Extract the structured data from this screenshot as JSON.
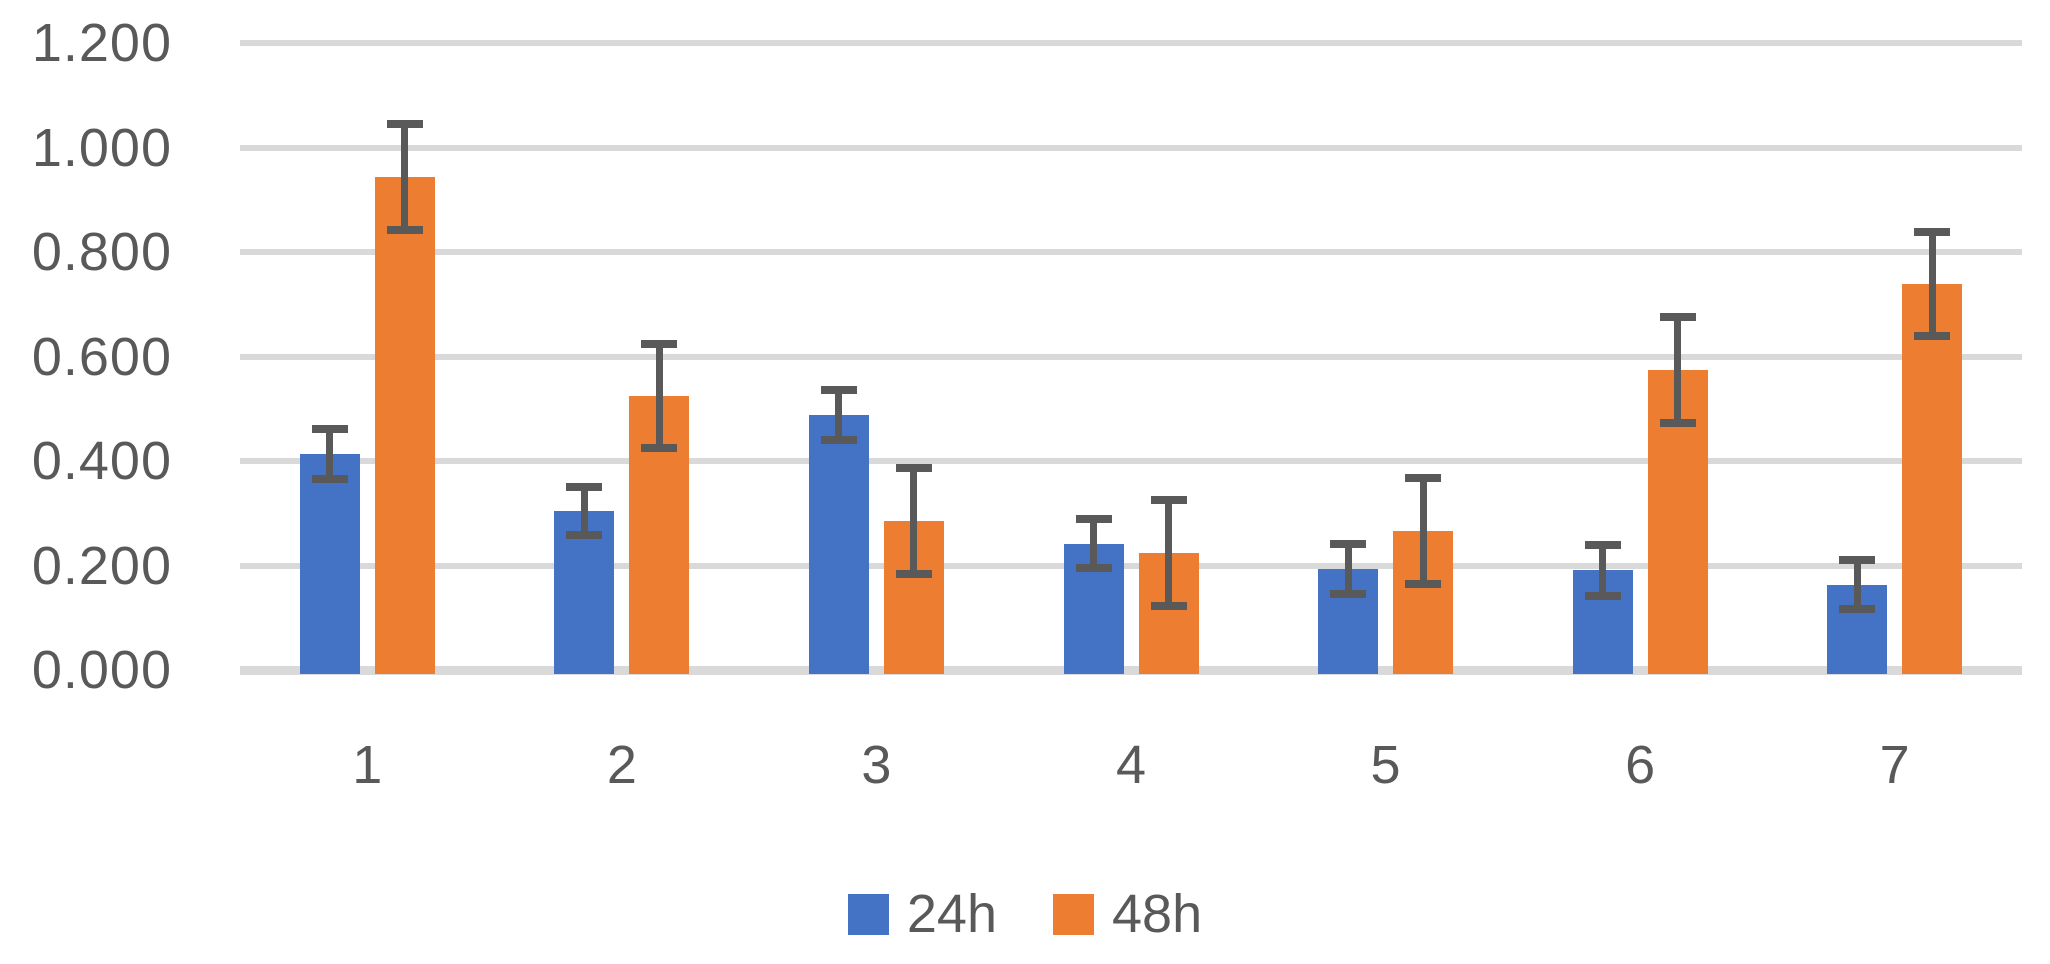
{
  "chart_data": {
    "type": "bar",
    "title": "",
    "xlabel": "",
    "ylabel": "",
    "categories": [
      "1",
      "2",
      "3",
      "4",
      "5",
      "6",
      "7"
    ],
    "series": [
      {
        "name": "24h",
        "color": "#4472C4",
        "values": [
          0.413,
          0.305,
          0.488,
          0.242,
          0.193,
          0.191,
          0.163
        ],
        "errors": [
          0.048,
          0.046,
          0.047,
          0.047,
          0.048,
          0.049,
          0.047
        ]
      },
      {
        "name": "48h",
        "color": "#ED7D31",
        "values": [
          0.944,
          0.524,
          0.285,
          0.224,
          0.266,
          0.574,
          0.739
        ],
        "errors": [
          0.101,
          0.1,
          0.102,
          0.102,
          0.101,
          0.102,
          0.099
        ]
      }
    ],
    "ylim": [
      0.0,
      1.2
    ],
    "y_tick_step": 0.2,
    "y_tick_labels": [
      "0.000",
      "0.200",
      "0.400",
      "0.600",
      "0.800",
      "1.000",
      "1.200"
    ],
    "grid": true,
    "error_bars": true,
    "legend_position": "bottom-center",
    "colors": {
      "gridline": "#D9D9D9",
      "axis_line": "#D9D9D9",
      "error_bar": "#595959",
      "text": "#595959"
    }
  }
}
